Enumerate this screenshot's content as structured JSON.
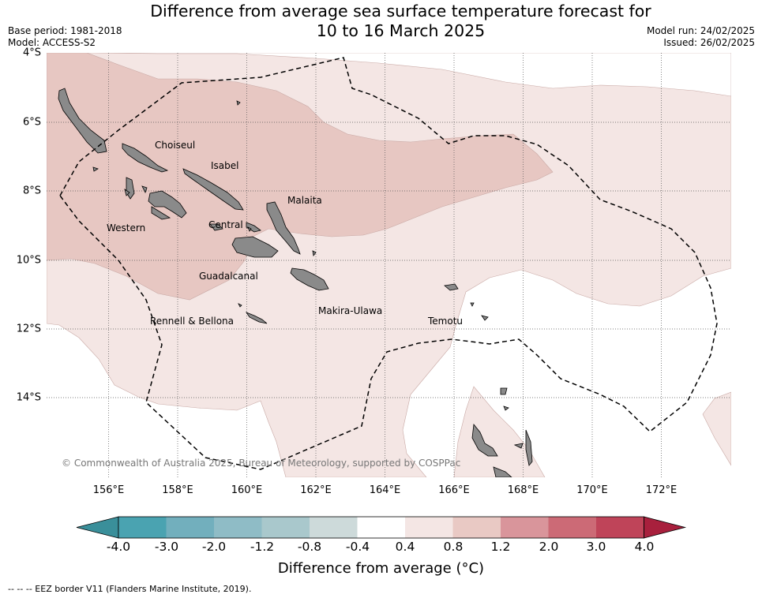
{
  "title_line1": "Difference from average sea surface temperature forecast for",
  "title_line2": "10 to 16 March 2025",
  "base_period": "Base period: 1981-2018",
  "model": "Model: ACCESS-S2",
  "model_run": "Model run: 24/02/2025",
  "issued": "Issued: 26/02/2025",
  "x_ticks": [
    "156°E",
    "158°E",
    "160°E",
    "162°E",
    "164°E",
    "166°E",
    "168°E",
    "170°E",
    "172°E"
  ],
  "y_ticks": [
    "4°S",
    "6°S",
    "8°S",
    "10°S",
    "12°S",
    "14°S"
  ],
  "places": {
    "choiseul": "Choiseul",
    "isabel": "Isabel",
    "malaita": "Malaita",
    "western": "Western",
    "central": "Central",
    "guadalcanal": "Guadalcanal",
    "makira": "Makira-Ulawa",
    "rennell": "Rennell & Bellona",
    "temotu": "Temotu"
  },
  "copyright": "© Commonwealth of Australia 2025, Bureau of Meteorology, supported by COSPPac",
  "colorbar": {
    "ticks": [
      "-4.0",
      "-3.0",
      "-2.0",
      "-1.2",
      "-0.8",
      "-0.4",
      "0.4",
      "0.8",
      "1.2",
      "2.0",
      "3.0",
      "4.0"
    ],
    "colors": [
      "#3a8f9a",
      "#4aa3b1",
      "#72afbd",
      "#8fbcc6",
      "#a9c8cc",
      "#cddada",
      "#ffffff",
      "#f4e6e4",
      "#e9c9c4",
      "#d9959b",
      "#cc6a76",
      "#bf4459",
      "#a8203d"
    ],
    "label": "Difference from average ($^\\circ$C)",
    "label_display": "Difference from average (°C)"
  },
  "eez_legend": "-- -- -- EEZ border V11 (Flanders Marine Institute, 2019)."
}
